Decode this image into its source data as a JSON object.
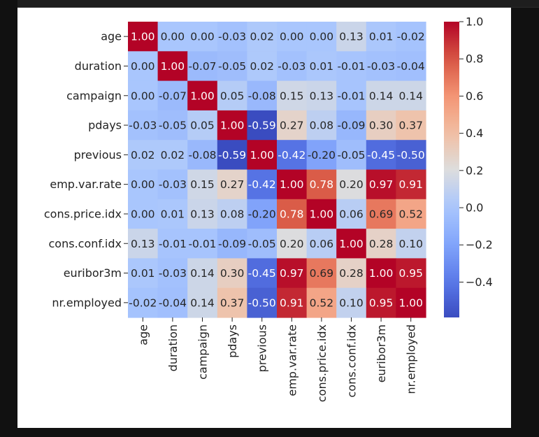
{
  "chart_data": {
    "type": "heatmap",
    "title": "",
    "xlabel": "",
    "ylabel": "",
    "rows": [
      "age",
      "duration",
      "campaign",
      "pdays",
      "previous",
      "emp.var.rate",
      "cons.price.idx",
      "cons.conf.idx",
      "euribor3m",
      "nr.employed"
    ],
    "columns": [
      "age",
      "duration",
      "campaign",
      "pdays",
      "previous",
      "emp.var.rate",
      "cons.price.idx",
      "cons.conf.idx",
      "euribor3m",
      "nr.employed"
    ],
    "values": [
      [
        1.0,
        -0.0,
        0.0,
        -0.03,
        0.02,
        -0.0,
        0.0,
        0.13,
        0.01,
        -0.02
      ],
      [
        -0.0,
        1.0,
        -0.07,
        -0.05,
        0.02,
        -0.03,
        0.01,
        -0.01,
        -0.03,
        -0.04
      ],
      [
        0.0,
        -0.07,
        1.0,
        0.05,
        -0.08,
        0.15,
        0.13,
        -0.01,
        0.14,
        0.14
      ],
      [
        -0.03,
        -0.05,
        0.05,
        1.0,
        -0.59,
        0.27,
        0.08,
        -0.09,
        0.3,
        0.37
      ],
      [
        0.02,
        0.02,
        -0.08,
        -0.59,
        1.0,
        -0.42,
        -0.2,
        -0.05,
        -0.45,
        -0.5
      ],
      [
        -0.0,
        -0.03,
        0.15,
        0.27,
        -0.42,
        1.0,
        0.78,
        0.2,
        0.97,
        0.91
      ],
      [
        0.0,
        0.01,
        0.13,
        0.08,
        -0.2,
        0.78,
        1.0,
        0.06,
        0.69,
        0.52
      ],
      [
        0.13,
        -0.01,
        -0.01,
        -0.09,
        -0.05,
        0.2,
        0.06,
        1.0,
        0.28,
        0.1
      ],
      [
        0.01,
        -0.03,
        0.14,
        0.3,
        -0.45,
        0.97,
        0.69,
        0.28,
        1.0,
        0.95
      ],
      [
        -0.02,
        -0.04,
        0.14,
        0.37,
        -0.5,
        0.91,
        0.52,
        0.1,
        0.95,
        1.0
      ]
    ],
    "annotation_format": "0.00",
    "colormap": "coolwarm",
    "color_range": [
      -0.59,
      1.0
    ],
    "colorbar_ticks": [
      "1.0",
      "0.8",
      "0.6",
      "0.4",
      "0.2",
      "0.0",
      "−0.2",
      "−0.4"
    ],
    "colorbar_tick_values": [
      1.0,
      0.8,
      0.6,
      0.4,
      0.2,
      0.0,
      -0.2,
      -0.4
    ],
    "grid": false,
    "legend": "colorbar-right"
  }
}
